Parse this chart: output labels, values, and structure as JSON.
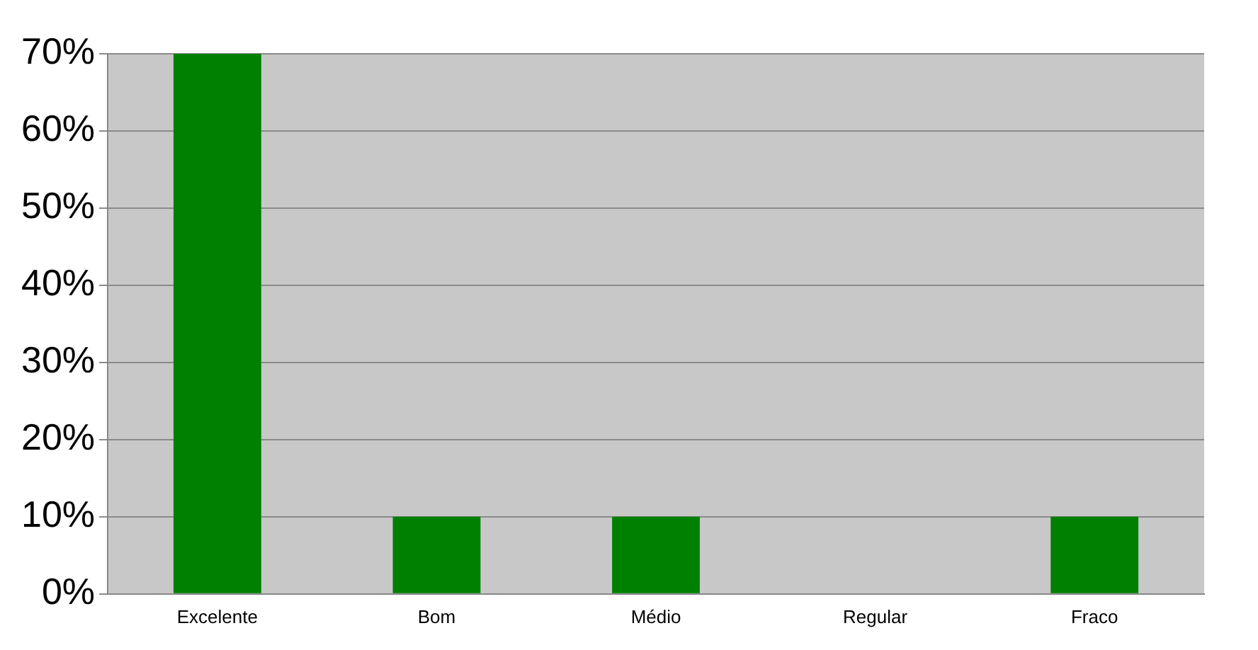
{
  "chart_data": {
    "type": "bar",
    "categories": [
      "Excelente",
      "Bom",
      "Médio",
      "Regular",
      "Fraco"
    ],
    "values": [
      70,
      10,
      10,
      0,
      10
    ],
    "color": "#008000",
    "ylim": [
      0,
      70
    ],
    "yticks": [
      {
        "value": 0,
        "label": "0%"
      },
      {
        "value": 10,
        "label": "10%"
      },
      {
        "value": 20,
        "label": "20%"
      },
      {
        "value": 30,
        "label": "30%"
      },
      {
        "value": 40,
        "label": "40%"
      },
      {
        "value": 50,
        "label": "50%"
      },
      {
        "value": 60,
        "label": "60%"
      },
      {
        "value": 70,
        "label": "70%"
      }
    ],
    "grid": "y",
    "legend": false
  }
}
